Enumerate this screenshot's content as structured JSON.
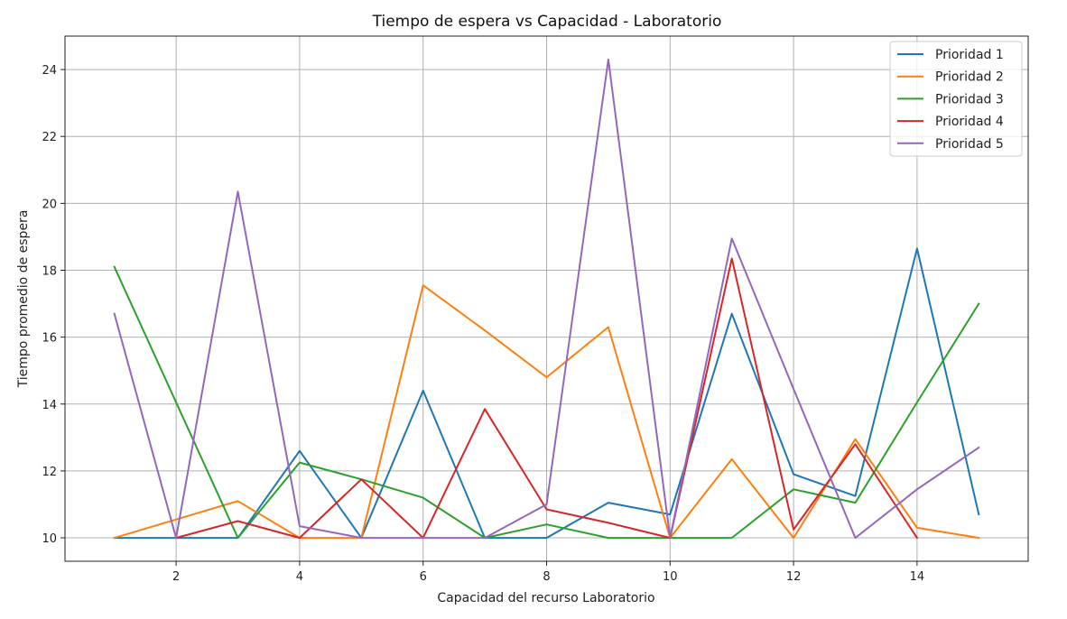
{
  "chart_data": {
    "type": "line",
    "title": "Tiempo de espera vs Capacidad - Laboratorio",
    "xlabel": "Capacidad del recurso Laboratorio",
    "ylabel": "Tiempo promedio de espera",
    "x": [
      1,
      2,
      3,
      4,
      5,
      6,
      7,
      8,
      9,
      10,
      11,
      12,
      13,
      14,
      15
    ],
    "xlim": [
      0.2,
      15.8
    ],
    "ylim": [
      9.3,
      25.0
    ],
    "xticks": [
      2,
      4,
      6,
      8,
      10,
      12,
      14
    ],
    "yticks": [
      10,
      12,
      14,
      16,
      18,
      20,
      22,
      24
    ],
    "grid": true,
    "legend_position": "top-right",
    "series": [
      {
        "name": "Prioridad 1",
        "color": "#1f77b4",
        "values": [
          10,
          10,
          10,
          12.6,
          10,
          14.4,
          10,
          10,
          11.05,
          10.7,
          16.7,
          11.9,
          11.25,
          18.65,
          10.7
        ]
      },
      {
        "name": "Prioridad 2",
        "color": "#ff7f0e",
        "values": [
          10,
          10.55,
          11.1,
          10,
          10,
          17.55,
          16.2,
          14.8,
          16.3,
          10,
          12.35,
          10,
          12.95,
          10.3,
          10
        ]
      },
      {
        "name": "Prioridad 3",
        "color": "#2ca02c",
        "values": [
          18.1,
          14.05,
          10,
          12.25,
          11.75,
          11.2,
          10,
          10.4,
          10,
          10,
          10,
          11.45,
          11.05,
          14.05,
          17
        ]
      },
      {
        "name": "Prioridad 4",
        "color": "#d62728",
        "values": [
          null,
          10,
          10.5,
          10,
          11.75,
          10,
          13.85,
          10.85,
          10.45,
          10,
          18.35,
          10.25,
          12.8,
          10,
          null
        ]
      },
      {
        "name": "Prioridad 5",
        "color": "#9467bd",
        "values": [
          16.7,
          10,
          20.35,
          10.35,
          10,
          10,
          10,
          11,
          24.3,
          10,
          18.95,
          14.45,
          10,
          11.45,
          12.7
        ]
      }
    ]
  }
}
